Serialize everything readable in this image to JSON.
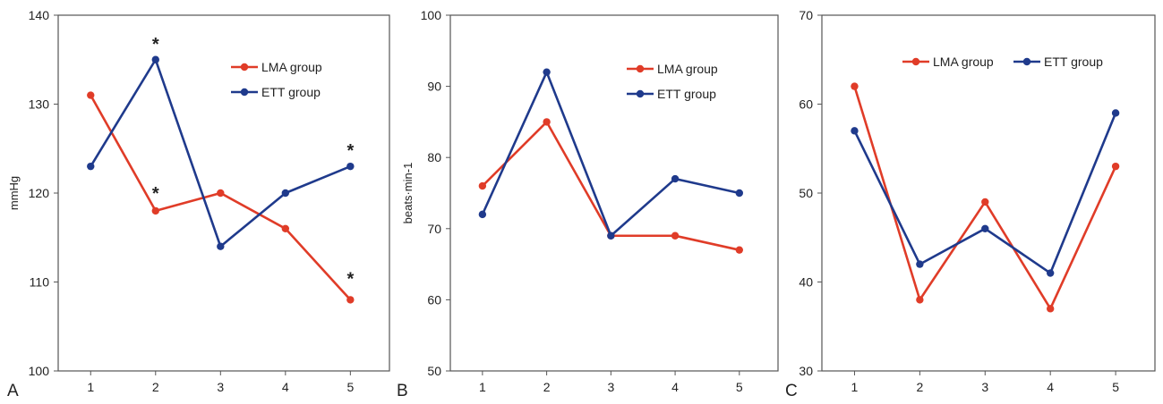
{
  "colors": {
    "lma": "#e03c28",
    "ett": "#1f3a8c",
    "axis": "#555555",
    "text": "#222222"
  },
  "chart_data": [
    {
      "type": "line",
      "panel_label": "A",
      "ylabel": "mmHg",
      "xlabel": "",
      "categories": [
        "1",
        "2",
        "3",
        "4",
        "5"
      ],
      "ylim": [
        100,
        140
      ],
      "yticks": [
        "100",
        "110",
        "120",
        "130",
        "140"
      ],
      "grid": false,
      "legend_position": "top-right",
      "series": [
        {
          "name": "LMA group",
          "color": "#e03c28",
          "values": [
            131,
            118,
            120,
            116,
            108
          ]
        },
        {
          "name": "ETT group",
          "color": "#1f3a8c",
          "values": [
            123,
            135,
            114,
            120,
            123
          ]
        }
      ],
      "annotations": [
        {
          "text": "*",
          "category": "2",
          "value": 135
        },
        {
          "text": "*",
          "category": "2",
          "value": 118
        },
        {
          "text": "*",
          "category": "5",
          "value": 123
        },
        {
          "text": "*",
          "category": "5",
          "value": 108
        }
      ]
    },
    {
      "type": "line",
      "panel_label": "B",
      "ylabel": "beats·min-1",
      "xlabel": "",
      "categories": [
        "1",
        "2",
        "3",
        "4",
        "5"
      ],
      "ylim": [
        50,
        100
      ],
      "yticks": [
        "50",
        "60",
        "70",
        "80",
        "90",
        "100"
      ],
      "grid": false,
      "legend_position": "top-right",
      "series": [
        {
          "name": "LMA group",
          "color": "#e03c28",
          "values": [
            76,
            85,
            69,
            69,
            67
          ]
        },
        {
          "name": "ETT group",
          "color": "#1f3a8c",
          "values": [
            72,
            92,
            69,
            77,
            75
          ]
        }
      ],
      "annotations": []
    },
    {
      "type": "line",
      "panel_label": "C",
      "ylabel": "",
      "xlabel": "",
      "categories": [
        "1",
        "2",
        "3",
        "4",
        "5"
      ],
      "ylim": [
        30,
        70
      ],
      "yticks": [
        "30",
        "40",
        "50",
        "60",
        "70"
      ],
      "grid": false,
      "legend_position": "top",
      "series": [
        {
          "name": "LMA group",
          "color": "#e03c28",
          "values": [
            62,
            38,
            49,
            37,
            53
          ]
        },
        {
          "name": "ETT group",
          "color": "#1f3a8c",
          "values": [
            57,
            42,
            46,
            41,
            59
          ]
        }
      ],
      "annotations": []
    }
  ]
}
